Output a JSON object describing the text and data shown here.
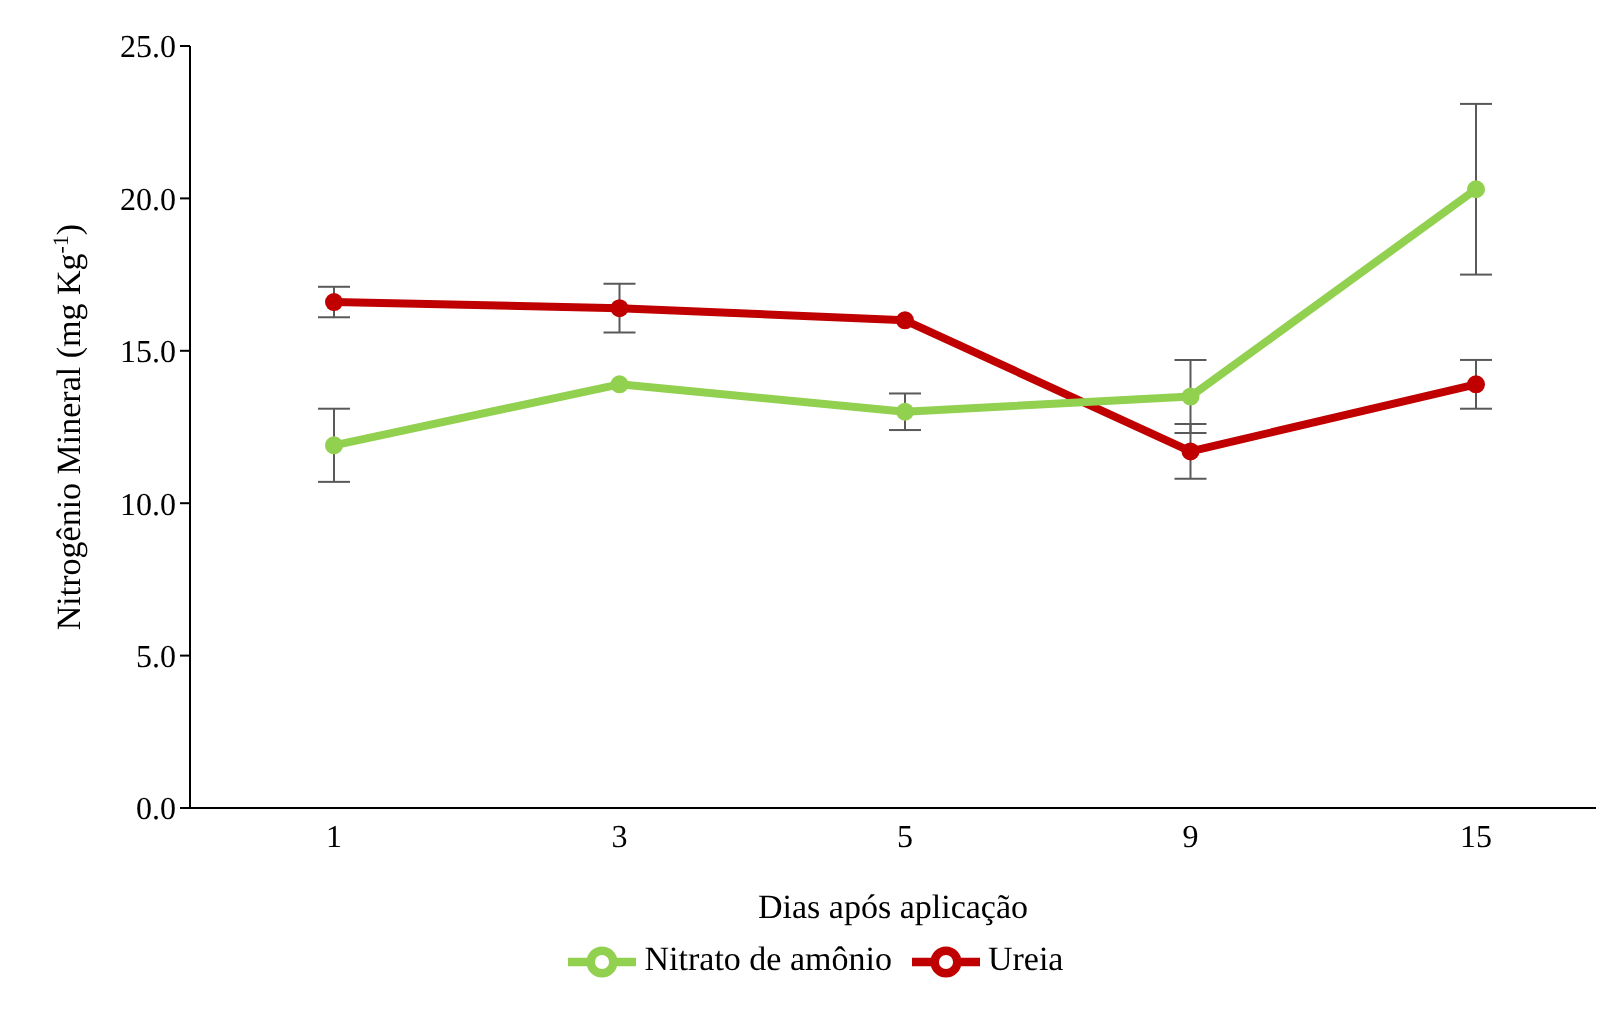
{
  "chart_data": {
    "type": "line",
    "xlabel": "Dias após aplicação",
    "ylabel": "Nitrogênio Mineral (mg Kg$^{-1}$)",
    "categories": [
      "1",
      "3",
      "5",
      "9",
      "15"
    ],
    "series": [
      {
        "name": "Ureia",
        "color": "#c00000",
        "values": [
          16.6,
          16.4,
          16.0,
          11.7,
          13.9
        ],
        "errors": [
          0.5,
          0.8,
          null,
          0.9,
          0.8
        ]
      },
      {
        "name": "Nitrato de amônio",
        "color": "#92d050",
        "values": [
          11.9,
          13.9,
          13.0,
          13.5,
          20.3
        ],
        "errors": [
          1.2,
          null,
          0.6,
          1.2,
          2.8
        ]
      }
    ],
    "ylim": [
      0,
      25
    ],
    "yticks": [
      {
        "value": 0,
        "label": "0.0"
      },
      {
        "value": 5,
        "label": "5.0"
      },
      {
        "value": 10,
        "label": "10.0"
      },
      {
        "value": 15,
        "label": "15.0"
      },
      {
        "value": 20,
        "label": "20.0"
      },
      {
        "value": 25,
        "label": "25.0"
      }
    ],
    "grid": false,
    "legend": "bottom",
    "marker": "circle",
    "line_style": "solid"
  }
}
